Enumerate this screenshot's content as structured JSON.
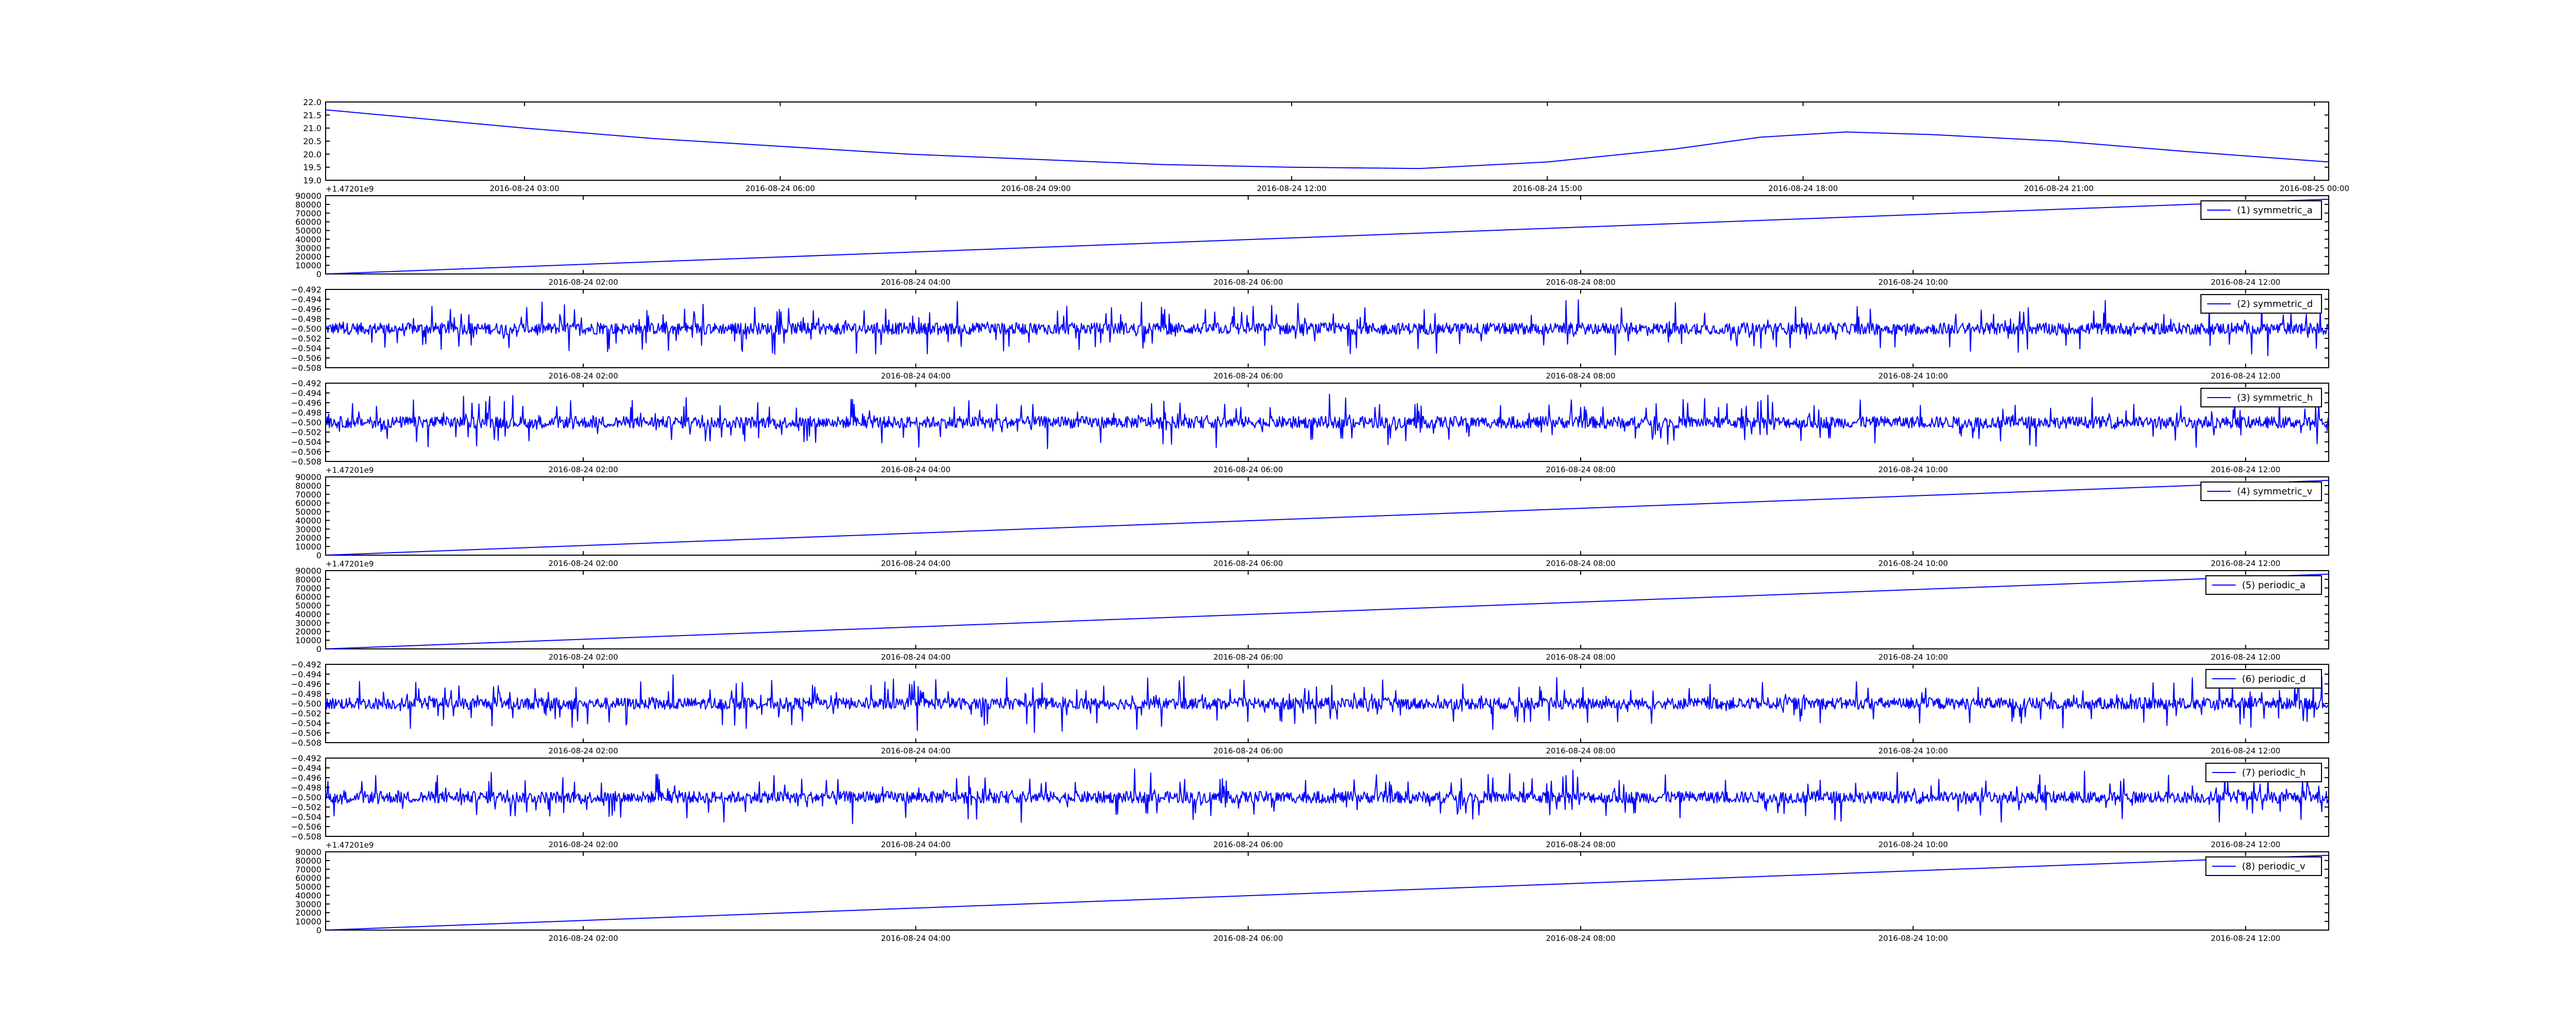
{
  "chart_data": [
    {
      "type": "line",
      "color": "#0000ff",
      "x_kind": "datetime",
      "xlim": [
        "2016-08-24 00:40",
        "2016-08-25 00:10"
      ],
      "x_ticks": [
        "2016-08-24 03:00",
        "2016-08-24 06:00",
        "2016-08-24 09:00",
        "2016-08-24 12:00",
        "2016-08-24 15:00",
        "2016-08-24 18:00",
        "2016-08-24 21:00",
        "2016-08-25 00:00"
      ],
      "ylim": [
        19.0,
        22.0
      ],
      "y_ticks": [
        "19.0",
        "19.5",
        "20.0",
        "20.5",
        "21.0",
        "21.5",
        "22.0"
      ],
      "y_offset_label": "",
      "legend": "",
      "series": [
        {
          "name": "",
          "x": [
            "2016-08-24 00:40",
            "2016-08-24 02:00",
            "2016-08-24 03:00",
            "2016-08-24 04:30",
            "2016-08-24 06:00",
            "2016-08-24 07:30",
            "2016-08-24 09:00",
            "2016-08-24 10:30",
            "2016-08-24 12:00",
            "2016-08-24 13:30",
            "2016-08-24 15:00",
            "2016-08-24 16:30",
            "2016-08-24 17:30",
            "2016-08-24 18:30",
            "2016-08-24 19:30",
            "2016-08-24 21:00",
            "2016-08-24 22:30",
            "2016-08-25 00:10"
          ],
          "values": [
            21.7,
            21.3,
            21.0,
            20.6,
            20.3,
            20.0,
            19.8,
            19.6,
            19.5,
            19.45,
            19.7,
            20.2,
            20.65,
            20.85,
            20.75,
            20.5,
            20.1,
            19.7
          ]
        }
      ]
    },
    {
      "type": "line",
      "color": "#0000ff",
      "x_kind": "datetime",
      "xlim": [
        "2016-08-24 00:27",
        "2016-08-24 12:30"
      ],
      "x_ticks": [
        "2016-08-24 02:00",
        "2016-08-24 04:00",
        "2016-08-24 06:00",
        "2016-08-24 08:00",
        "2016-08-24 10:00",
        "2016-08-24 12:00"
      ],
      "ylim": [
        0,
        90000
      ],
      "y_ticks": [
        "0",
        "10000",
        "20000",
        "30000",
        "40000",
        "50000",
        "60000",
        "70000",
        "80000",
        "90000"
      ],
      "y_offset_label": "+1.47201e9",
      "legend": "(1) symmetric_a",
      "series": [
        {
          "name": "(1) symmetric_a",
          "x": [
            "2016-08-24 00:27",
            "2016-08-24 12:30"
          ],
          "values": [
            0,
            86000
          ]
        }
      ]
    },
    {
      "type": "line",
      "color": "#0000ff",
      "x_kind": "datetime",
      "xlim": [
        "2016-08-24 00:27",
        "2016-08-24 12:30"
      ],
      "x_ticks": [
        "2016-08-24 02:00",
        "2016-08-24 04:00",
        "2016-08-24 06:00",
        "2016-08-24 08:00",
        "2016-08-24 10:00",
        "2016-08-24 12:00"
      ],
      "ylim": [
        -0.508,
        -0.492
      ],
      "y_ticks": [
        "−0.508",
        "−0.506",
        "−0.504",
        "−0.502",
        "−0.500",
        "−0.498",
        "−0.496",
        "−0.494",
        "−0.492"
      ],
      "y_offset_label": "",
      "legend": "(2) symmetric_d",
      "series": [
        {
          "name": "(2) symmetric_d",
          "x": [
            "2016-08-24 00:27",
            "2016-08-24 12:30"
          ],
          "center": -0.5,
          "amplitude": 0.003,
          "values": [
            -0.5,
            -0.5
          ]
        }
      ]
    },
    {
      "type": "line",
      "color": "#0000ff",
      "x_kind": "datetime",
      "xlim": [
        "2016-08-24 00:27",
        "2016-08-24 12:30"
      ],
      "x_ticks": [
        "2016-08-24 02:00",
        "2016-08-24 04:00",
        "2016-08-24 06:00",
        "2016-08-24 08:00",
        "2016-08-24 10:00",
        "2016-08-24 12:00"
      ],
      "ylim": [
        -0.508,
        -0.492
      ],
      "y_ticks": [
        "−0.508",
        "−0.506",
        "−0.504",
        "−0.502",
        "−0.500",
        "−0.498",
        "−0.496",
        "−0.494",
        "−0.492"
      ],
      "y_offset_label": "",
      "legend": "(3) symmetric_h",
      "series": [
        {
          "name": "(3) symmetric_h",
          "x": [
            "2016-08-24 00:27",
            "2016-08-24 12:30"
          ],
          "center": -0.5,
          "amplitude": 0.003,
          "values": [
            -0.5,
            -0.5
          ]
        }
      ]
    },
    {
      "type": "line",
      "color": "#0000ff",
      "x_kind": "datetime",
      "xlim": [
        "2016-08-24 00:27",
        "2016-08-24 12:30"
      ],
      "x_ticks": [
        "2016-08-24 02:00",
        "2016-08-24 04:00",
        "2016-08-24 06:00",
        "2016-08-24 08:00",
        "2016-08-24 10:00",
        "2016-08-24 12:00"
      ],
      "ylim": [
        0,
        90000
      ],
      "y_ticks": [
        "0",
        "10000",
        "20000",
        "30000",
        "40000",
        "50000",
        "60000",
        "70000",
        "80000",
        "90000"
      ],
      "y_offset_label": "+1.47201e9",
      "legend": "(4) symmetric_v",
      "series": [
        {
          "name": "(4) symmetric_v",
          "x": [
            "2016-08-24 00:27",
            "2016-08-24 12:30"
          ],
          "values": [
            0,
            86000
          ]
        }
      ]
    },
    {
      "type": "line",
      "color": "#0000ff",
      "x_kind": "datetime",
      "xlim": [
        "2016-08-24 00:27",
        "2016-08-24 12:30"
      ],
      "x_ticks": [
        "2016-08-24 02:00",
        "2016-08-24 04:00",
        "2016-08-24 06:00",
        "2016-08-24 08:00",
        "2016-08-24 10:00",
        "2016-08-24 12:00"
      ],
      "ylim": [
        0,
        90000
      ],
      "y_ticks": [
        "0",
        "10000",
        "20000",
        "30000",
        "40000",
        "50000",
        "60000",
        "70000",
        "80000",
        "90000"
      ],
      "y_offset_label": "+1.47201e9",
      "legend": "(5) periodic_a",
      "series": [
        {
          "name": "(5) periodic_a",
          "x": [
            "2016-08-24 00:27",
            "2016-08-24 12:30"
          ],
          "values": [
            0,
            86000
          ]
        }
      ]
    },
    {
      "type": "line",
      "color": "#0000ff",
      "x_kind": "datetime",
      "xlim": [
        "2016-08-24 00:27",
        "2016-08-24 12:30"
      ],
      "x_ticks": [
        "2016-08-24 02:00",
        "2016-08-24 04:00",
        "2016-08-24 06:00",
        "2016-08-24 08:00",
        "2016-08-24 10:00",
        "2016-08-24 12:00"
      ],
      "ylim": [
        -0.508,
        -0.492
      ],
      "y_ticks": [
        "−0.508",
        "−0.506",
        "−0.504",
        "−0.502",
        "−0.500",
        "−0.498",
        "−0.496",
        "−0.494",
        "−0.492"
      ],
      "y_offset_label": "",
      "legend": "(6) periodic_d",
      "series": [
        {
          "name": "(6) periodic_d",
          "x": [
            "2016-08-24 00:27",
            "2016-08-24 12:30"
          ],
          "center": -0.5,
          "amplitude": 0.003,
          "values": [
            -0.5,
            -0.5
          ]
        }
      ]
    },
    {
      "type": "line",
      "color": "#0000ff",
      "x_kind": "datetime",
      "xlim": [
        "2016-08-24 00:27",
        "2016-08-24 12:30"
      ],
      "x_ticks": [
        "2016-08-24 02:00",
        "2016-08-24 04:00",
        "2016-08-24 06:00",
        "2016-08-24 08:00",
        "2016-08-24 10:00",
        "2016-08-24 12:00"
      ],
      "ylim": [
        -0.508,
        -0.492
      ],
      "y_ticks": [
        "−0.508",
        "−0.506",
        "−0.504",
        "−0.502",
        "−0.500",
        "−0.498",
        "−0.496",
        "−0.494",
        "−0.492"
      ],
      "y_offset_label": "",
      "legend": "(7) periodic_h",
      "series": [
        {
          "name": "(7) periodic_h",
          "x": [
            "2016-08-24 00:27",
            "2016-08-24 12:30"
          ],
          "center": -0.5,
          "amplitude": 0.003,
          "values": [
            -0.5,
            -0.5
          ]
        }
      ]
    },
    {
      "type": "line",
      "color": "#0000ff",
      "x_kind": "datetime",
      "xlim": [
        "2016-08-24 00:27",
        "2016-08-24 12:30"
      ],
      "x_ticks": [
        "2016-08-24 02:00",
        "2016-08-24 04:00",
        "2016-08-24 06:00",
        "2016-08-24 08:00",
        "2016-08-24 10:00",
        "2016-08-24 12:00"
      ],
      "ylim": [
        0,
        90000
      ],
      "y_ticks": [
        "0",
        "10000",
        "20000",
        "30000",
        "40000",
        "50000",
        "60000",
        "70000",
        "80000",
        "90000"
      ],
      "y_offset_label": "+1.47201e9",
      "legend": "(8) periodic_v",
      "series": [
        {
          "name": "(8) periodic_v",
          "x": [
            "2016-08-24 00:27",
            "2016-08-24 12:30"
          ],
          "values": [
            0,
            86000
          ]
        }
      ]
    }
  ]
}
